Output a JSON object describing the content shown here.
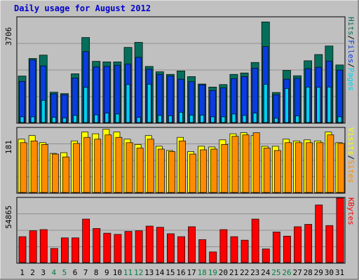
{
  "title": "Daily usage for August 2012",
  "colors": {
    "background": "#c0c0c0",
    "plot_background": "#c0c0c0",
    "grid": "#909090",
    "title": "#0000cc",
    "hits": "#066e5a",
    "files": "#0a3ce0",
    "pages": "#00d0f0",
    "visits": "#ffff00",
    "sites": "#ff8c00",
    "kbytes": "#ff0000",
    "weekend_label": "#008040",
    "weekday_label": "#000000"
  },
  "chart_data": [
    {
      "type": "bar",
      "title": "Daily usage for August 2012",
      "ylabel_parts": [
        "Pages",
        "/",
        "Files",
        "/",
        "Hits"
      ],
      "ymax_label": "3706",
      "ylim": [
        0,
        3706
      ],
      "grid": true,
      "categories": [
        "1",
        "2",
        "3",
        "4",
        "5",
        "6",
        "7",
        "8",
        "9",
        "10",
        "11",
        "12",
        "13",
        "14",
        "15",
        "16",
        "17",
        "18",
        "19",
        "20",
        "21",
        "22",
        "23",
        "24",
        "25",
        "26",
        "27",
        "28",
        "29",
        "30",
        "31"
      ],
      "series": [
        {
          "name": "Hits",
          "values": [
            1640,
            2260,
            2380,
            1070,
            1020,
            1720,
            3000,
            2160,
            2140,
            2140,
            2650,
            2830,
            1980,
            1790,
            1700,
            1820,
            1620,
            1360,
            1250,
            1340,
            1700,
            1750,
            2120,
            3550,
            1060,
            1840,
            1650,
            2180,
            2400,
            2700,
            2030
          ]
        },
        {
          "name": "Files",
          "values": [
            1450,
            2210,
            2000,
            1010,
            980,
            1570,
            2500,
            1960,
            1980,
            2020,
            2060,
            2300,
            1880,
            1700,
            1640,
            1530,
            1440,
            1330,
            1130,
            1220,
            1550,
            1620,
            1920,
            2680,
            980,
            1530,
            1560,
            1900,
            1950,
            2170,
            1850
          ]
        },
        {
          "name": "Pages",
          "values": [
            200,
            200,
            780,
            180,
            160,
            250,
            1240,
            270,
            330,
            300,
            1340,
            180,
            1350,
            250,
            240,
            360,
            260,
            260,
            200,
            200,
            300,
            250,
            330,
            1350,
            150,
            1200,
            230,
            1250,
            1240,
            1250,
            200
          ]
        }
      ]
    },
    {
      "type": "bar",
      "ylabel_parts": [
        "Sites",
        "/",
        "Visits"
      ],
      "ymax_label": "181",
      "ylim": [
        0,
        181
      ],
      "grid": true,
      "categories": [
        "1",
        "2",
        "3",
        "4",
        "5",
        "6",
        "7",
        "8",
        "9",
        "10",
        "11",
        "12",
        "13",
        "14",
        "15",
        "16",
        "17",
        "18",
        "19",
        "20",
        "21",
        "22",
        "23",
        "24",
        "25",
        "26",
        "27",
        "28",
        "29",
        "30",
        "31"
      ],
      "series": [
        {
          "name": "Visits",
          "values": [
            150,
            160,
            140,
            110,
            112,
            145,
            170,
            165,
            178,
            170,
            150,
            135,
            160,
            130,
            118,
            155,
            115,
            130,
            128,
            148,
            165,
            168,
            160,
            130,
            130,
            150,
            145,
            148,
            145,
            170,
            140
          ]
        },
        {
          "name": "Sites",
          "values": [
            140,
            145,
            135,
            108,
            100,
            138,
            155,
            150,
            162,
            155,
            140,
            125,
            150,
            122,
            115,
            145,
            108,
            120,
            122,
            135,
            158,
            162,
            168,
            125,
            118,
            140,
            140,
            140,
            140,
            162,
            138
          ]
        }
      ]
    },
    {
      "type": "bar",
      "ylabel_parts": [
        "KBytes"
      ],
      "ymax_label": "54865",
      "ylim": [
        0,
        54865
      ],
      "grid": true,
      "categories": [
        "1",
        "2",
        "3",
        "4",
        "5",
        "6",
        "7",
        "8",
        "9",
        "10",
        "11",
        "12",
        "13",
        "14",
        "15",
        "16",
        "17",
        "18",
        "19",
        "20",
        "21",
        "22",
        "23",
        "24",
        "25",
        "26",
        "27",
        "28",
        "29",
        "30",
        "31"
      ],
      "series": [
        {
          "name": "KBytes",
          "values": [
            22000,
            27000,
            28000,
            12000,
            21000,
            21000,
            37000,
            29000,
            25000,
            24000,
            26500,
            27000,
            31000,
            30000,
            24500,
            22000,
            30500,
            19500,
            9000,
            28000,
            22000,
            19000,
            37000,
            11500,
            26000,
            22500,
            30500,
            32500,
            49000,
            31500,
            54865
          ]
        }
      ]
    }
  ],
  "weekend_days": [
    "4",
    "5",
    "11",
    "12",
    "18",
    "19",
    "25",
    "26"
  ]
}
